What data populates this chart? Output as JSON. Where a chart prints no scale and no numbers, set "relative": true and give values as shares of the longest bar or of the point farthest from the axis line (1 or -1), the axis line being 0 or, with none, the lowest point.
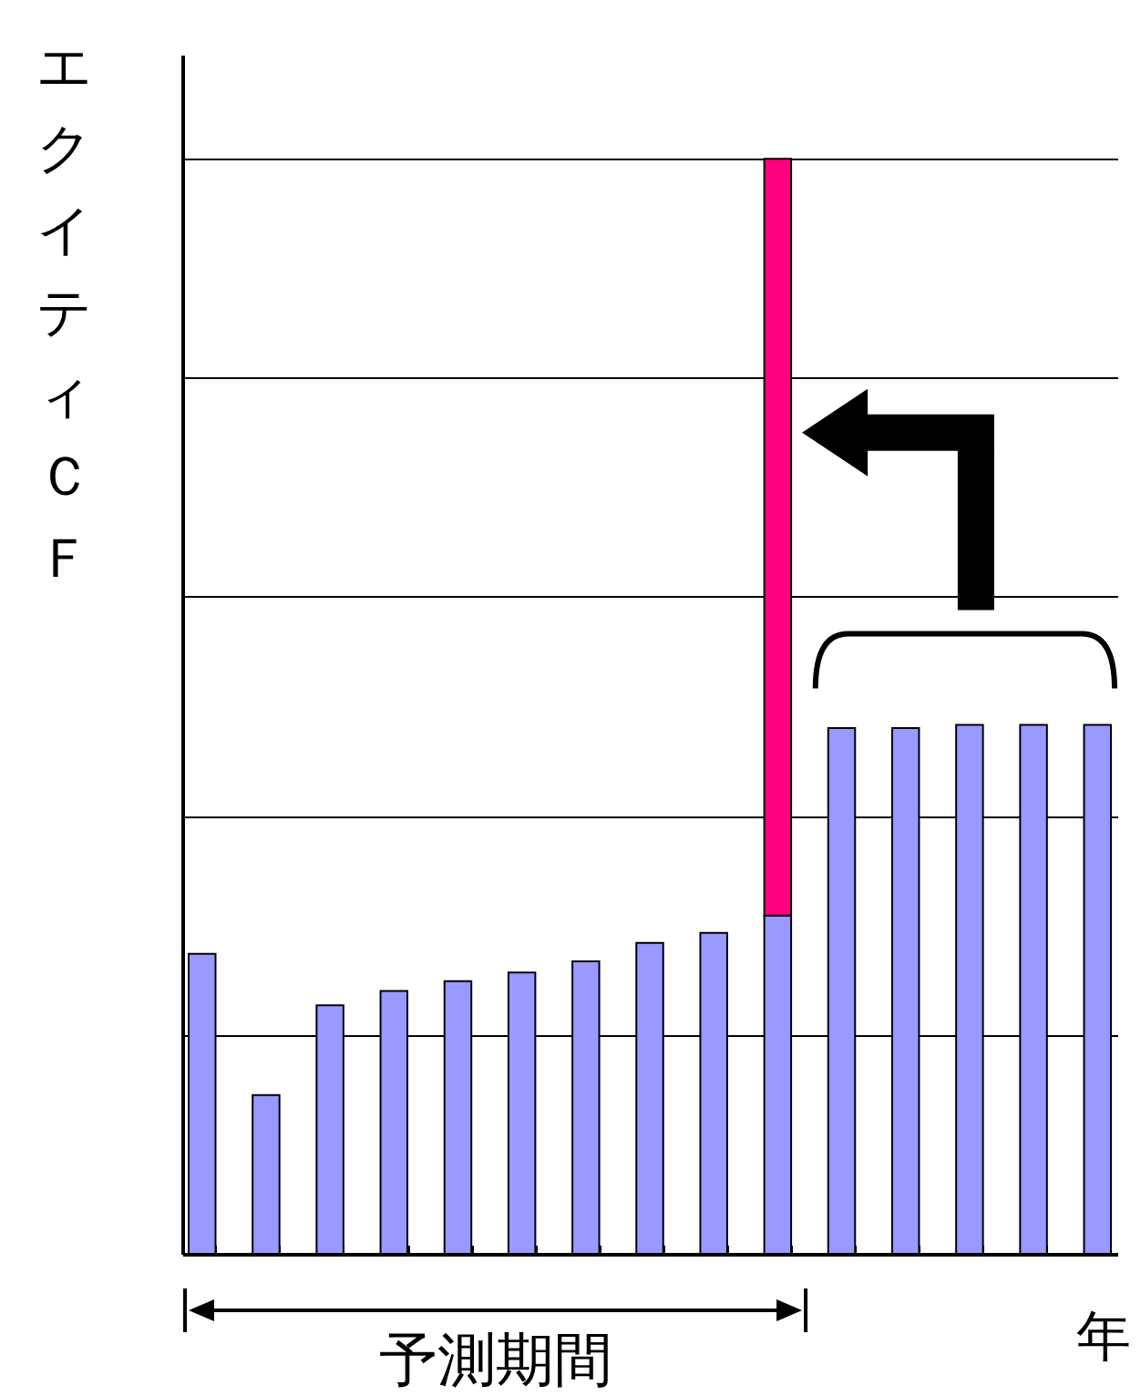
{
  "chart_data": {
    "type": "bar",
    "relative": true,
    "stacked": true,
    "grid": "y",
    "ylabel": "エクイティＣＦ",
    "xlabel": "年",
    "categories": [
      null,
      null,
      null,
      null,
      null,
      null,
      null,
      null,
      null,
      null,
      null,
      null,
      null,
      null,
      null
    ],
    "series": [
      {
        "color": "#9999ff",
        "values": [
          0.274,
          0.145,
          0.227,
          0.24,
          0.249,
          0.257,
          0.267,
          0.284,
          0.293,
          0.309,
          0.48,
          0.48,
          0.483,
          0.483,
          0.483
        ]
      },
      {
        "color": "#ff0080",
        "values": [
          null,
          null,
          null,
          null,
          null,
          null,
          null,
          null,
          null,
          0.691,
          null,
          null,
          null,
          null,
          null
        ]
      }
    ],
    "annotations": [
      "予測期間"
    ]
  }
}
